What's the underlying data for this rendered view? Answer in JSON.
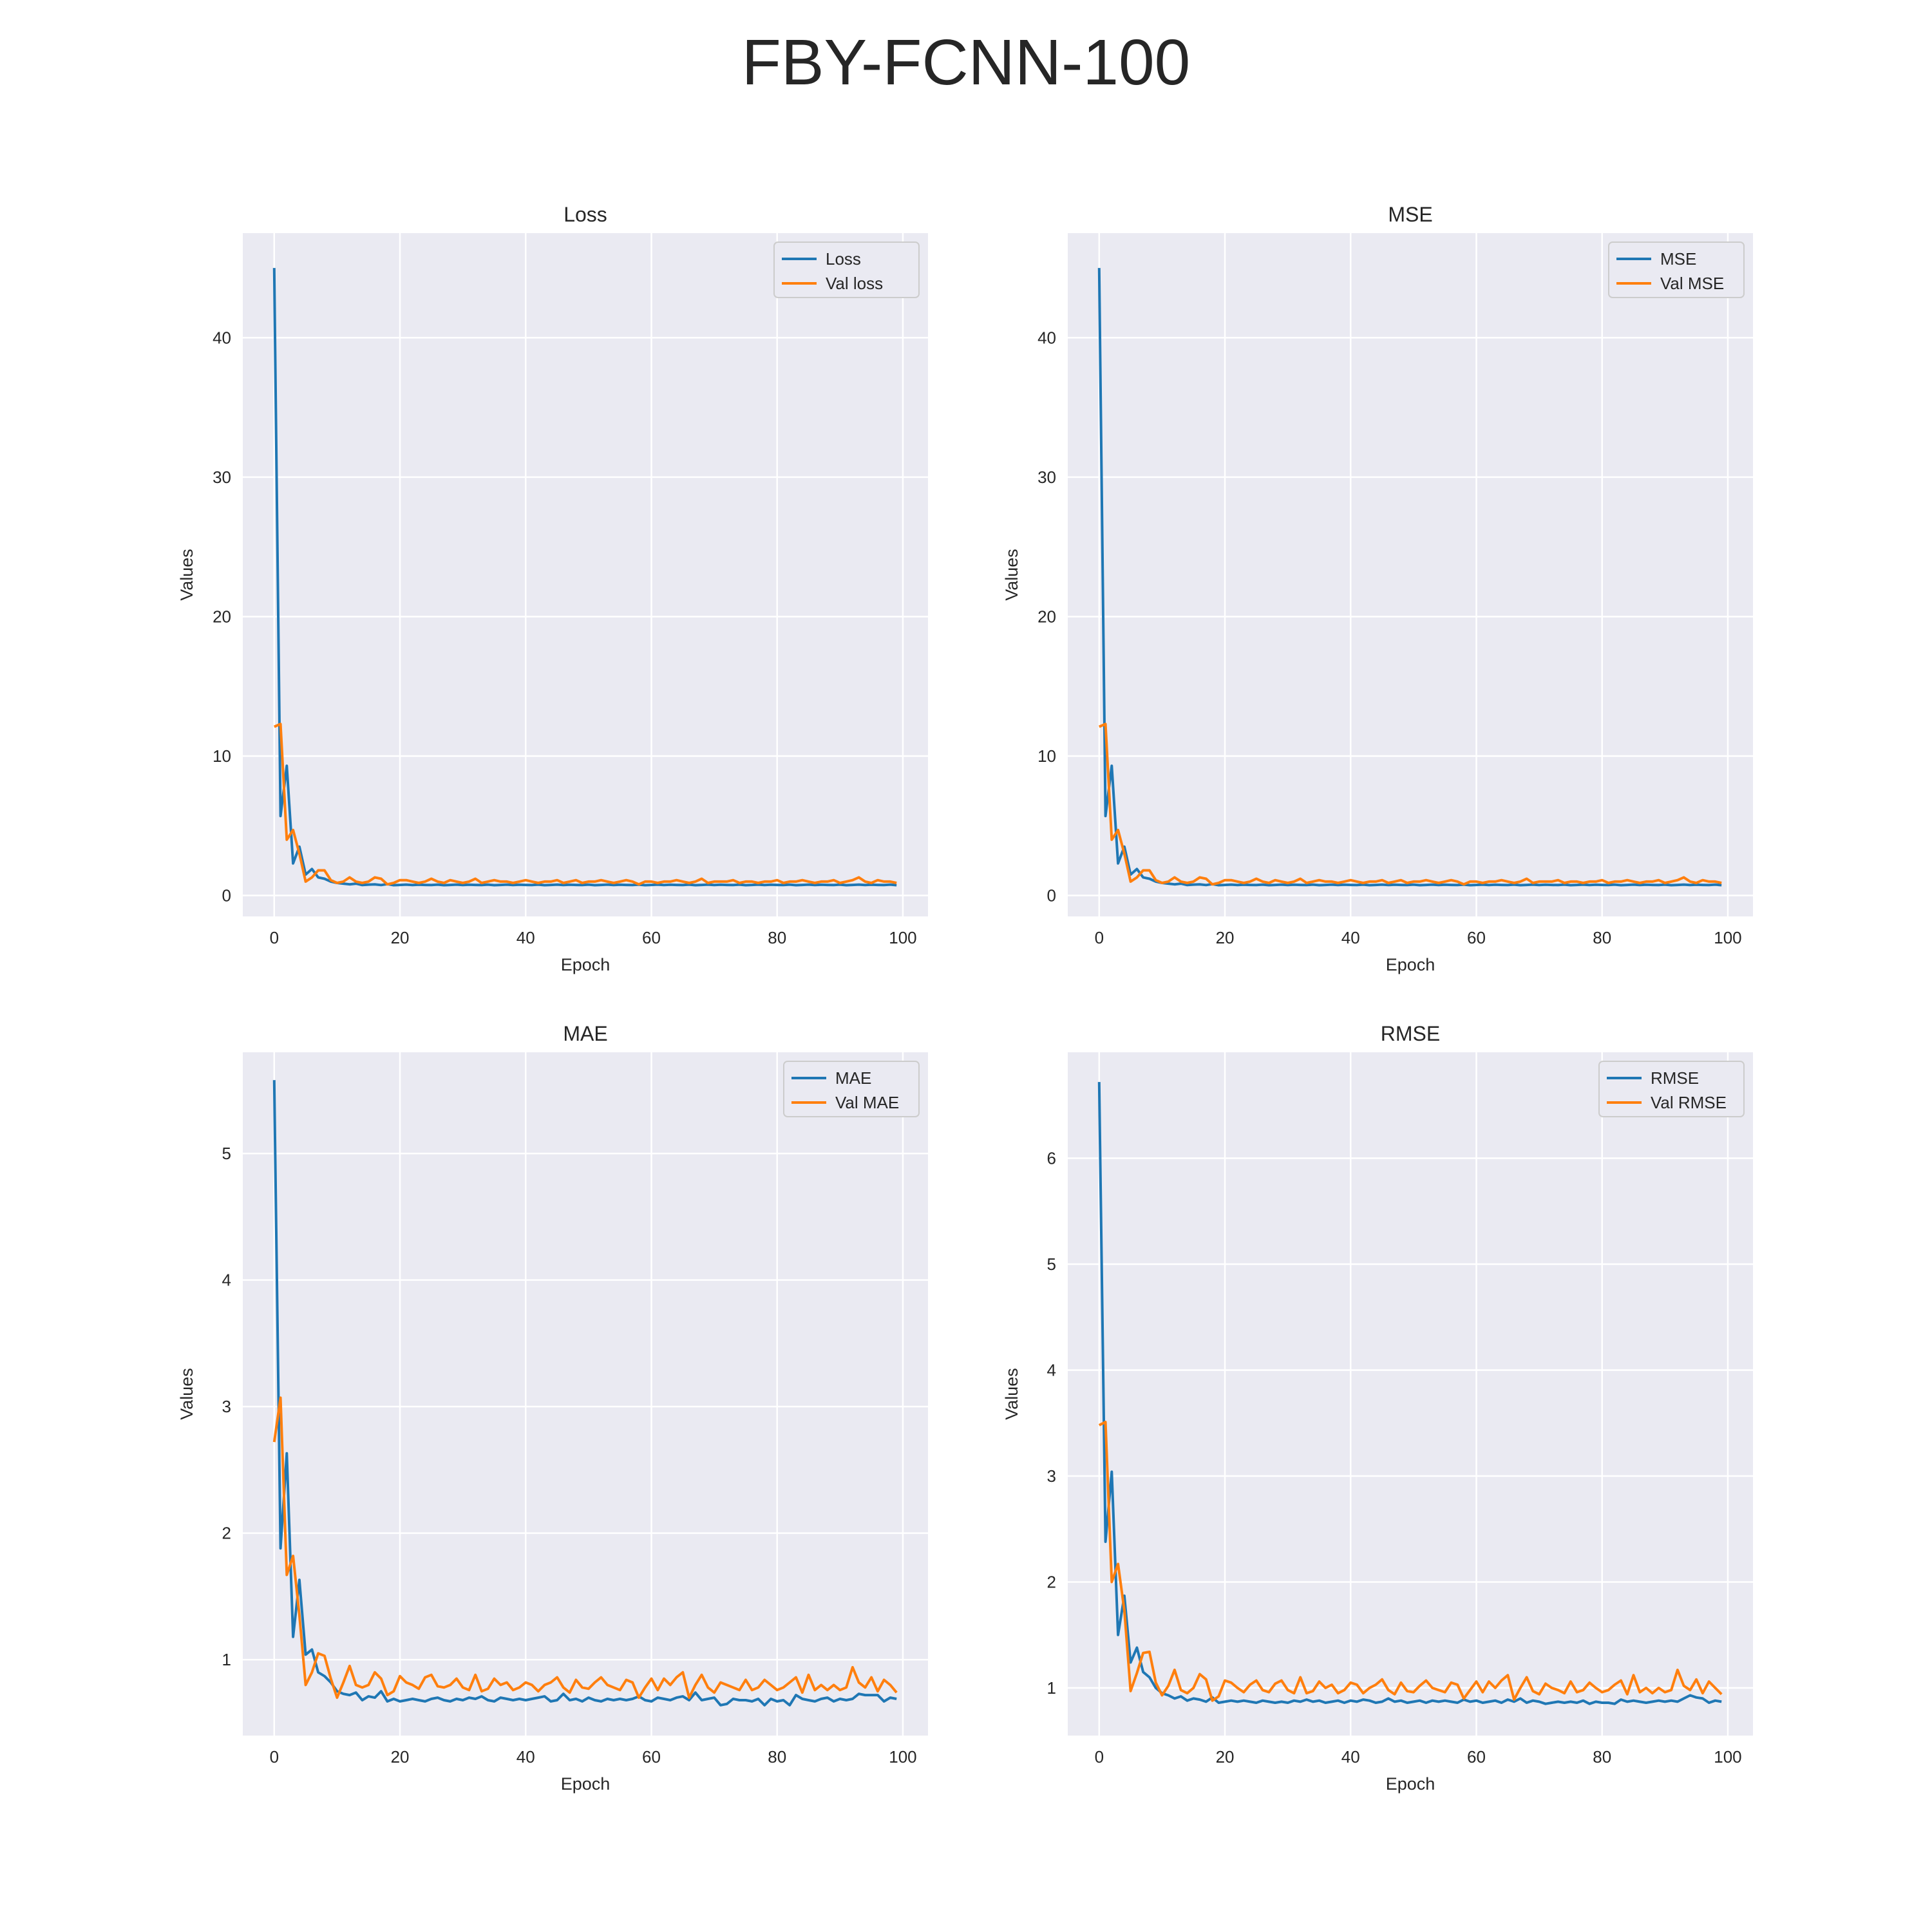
{
  "suptitle": "FBY-FCNN-100",
  "chart_data": [
    {
      "type": "line",
      "title": "Loss",
      "xlabel": "Epoch",
      "ylabel": "Values",
      "xlim": [
        -5,
        104
      ],
      "ylim": [
        -1.5,
        47.5
      ],
      "xticks": [
        0,
        20,
        40,
        60,
        80,
        100
      ],
      "yticks": [
        0,
        10,
        20,
        30,
        40
      ],
      "grid": true,
      "legend": "top-right",
      "series": [
        {
          "name": "Loss",
          "color": "#1f77b4",
          "values": [
            45.0,
            5.7,
            9.3,
            2.3,
            3.5,
            1.5,
            1.9,
            1.3,
            1.2,
            1.0,
            0.9,
            0.85,
            0.8,
            0.85,
            0.75,
            0.78,
            0.8,
            0.75,
            0.82,
            0.74,
            0.76,
            0.78,
            0.75,
            0.77,
            0.76,
            0.75,
            0.78,
            0.74,
            0.76,
            0.78,
            0.75,
            0.77,
            0.76,
            0.75,
            0.78,
            0.74,
            0.76,
            0.78,
            0.75,
            0.77,
            0.76,
            0.75,
            0.78,
            0.74,
            0.76,
            0.78,
            0.75,
            0.77,
            0.76,
            0.75,
            0.78,
            0.74,
            0.76,
            0.78,
            0.75,
            0.77,
            0.76,
            0.75,
            0.78,
            0.74,
            0.76,
            0.78,
            0.75,
            0.77,
            0.76,
            0.75,
            0.78,
            0.74,
            0.76,
            0.78,
            0.75,
            0.77,
            0.76,
            0.75,
            0.78,
            0.74,
            0.76,
            0.78,
            0.75,
            0.77,
            0.76,
            0.75,
            0.78,
            0.74,
            0.76,
            0.78,
            0.75,
            0.77,
            0.76,
            0.75,
            0.78,
            0.74,
            0.76,
            0.78,
            0.75,
            0.77,
            0.76,
            0.75,
            0.78,
            0.74
          ]
        },
        {
          "name": "Val loss",
          "color": "#ff7f0e",
          "values": [
            12.1,
            12.3,
            4.0,
            4.7,
            3.0,
            1.0,
            1.3,
            1.8,
            1.8,
            1.1,
            0.9,
            1.0,
            1.3,
            1.0,
            0.9,
            1.0,
            1.3,
            1.2,
            0.8,
            0.9,
            1.1,
            1.1,
            1.0,
            0.9,
            1.0,
            1.2,
            1.0,
            0.9,
            1.1,
            1.0,
            0.9,
            1.0,
            1.2,
            0.9,
            1.0,
            1.1,
            1.0,
            1.0,
            0.9,
            1.0,
            1.1,
            1.0,
            0.9,
            1.0,
            1.0,
            1.1,
            0.9,
            1.0,
            1.1,
            0.9,
            1.0,
            1.0,
            1.1,
            1.0,
            0.9,
            1.0,
            1.1,
            1.0,
            0.8,
            1.0,
            1.0,
            0.9,
            1.0,
            1.0,
            1.1,
            1.0,
            0.9,
            1.0,
            1.2,
            0.9,
            1.0,
            1.0,
            1.0,
            1.1,
            0.9,
            1.0,
            1.0,
            0.9,
            1.0,
            1.0,
            1.1,
            0.9,
            1.0,
            1.0,
            1.1,
            1.0,
            0.9,
            1.0,
            1.0,
            1.1,
            0.9,
            1.0,
            1.1,
            1.3,
            1.0,
            0.9,
            1.1,
            1.0,
            1.0,
            0.9
          ]
        }
      ]
    },
    {
      "type": "line",
      "title": "MSE",
      "xlabel": "Epoch",
      "ylabel": "Values",
      "xlim": [
        -5,
        104
      ],
      "ylim": [
        -1.5,
        47.5
      ],
      "xticks": [
        0,
        20,
        40,
        60,
        80,
        100
      ],
      "yticks": [
        0,
        10,
        20,
        30,
        40
      ],
      "grid": true,
      "legend": "top-right",
      "series": [
        {
          "name": "MSE",
          "color": "#1f77b4",
          "values": [
            45.0,
            5.7,
            9.3,
            2.3,
            3.5,
            1.5,
            1.9,
            1.3,
            1.2,
            1.0,
            0.9,
            0.85,
            0.8,
            0.85,
            0.75,
            0.78,
            0.8,
            0.75,
            0.82,
            0.74,
            0.76,
            0.78,
            0.75,
            0.77,
            0.76,
            0.75,
            0.78,
            0.74,
            0.76,
            0.78,
            0.75,
            0.77,
            0.76,
            0.75,
            0.78,
            0.74,
            0.76,
            0.78,
            0.75,
            0.77,
            0.76,
            0.75,
            0.78,
            0.74,
            0.76,
            0.78,
            0.75,
            0.77,
            0.76,
            0.75,
            0.78,
            0.74,
            0.76,
            0.78,
            0.75,
            0.77,
            0.76,
            0.75,
            0.78,
            0.74,
            0.76,
            0.78,
            0.75,
            0.77,
            0.76,
            0.75,
            0.78,
            0.74,
            0.76,
            0.78,
            0.75,
            0.77,
            0.76,
            0.75,
            0.78,
            0.74,
            0.76,
            0.78,
            0.75,
            0.77,
            0.76,
            0.75,
            0.78,
            0.74,
            0.76,
            0.78,
            0.75,
            0.77,
            0.76,
            0.75,
            0.78,
            0.74,
            0.76,
            0.78,
            0.75,
            0.77,
            0.76,
            0.75,
            0.78,
            0.74
          ]
        },
        {
          "name": "Val MSE",
          "color": "#ff7f0e",
          "values": [
            12.1,
            12.3,
            4.0,
            4.7,
            3.0,
            1.0,
            1.3,
            1.8,
            1.8,
            1.1,
            0.9,
            1.0,
            1.3,
            1.0,
            0.9,
            1.0,
            1.3,
            1.2,
            0.8,
            0.9,
            1.1,
            1.1,
            1.0,
            0.9,
            1.0,
            1.2,
            1.0,
            0.9,
            1.1,
            1.0,
            0.9,
            1.0,
            1.2,
            0.9,
            1.0,
            1.1,
            1.0,
            1.0,
            0.9,
            1.0,
            1.1,
            1.0,
            0.9,
            1.0,
            1.0,
            1.1,
            0.9,
            1.0,
            1.1,
            0.9,
            1.0,
            1.0,
            1.1,
            1.0,
            0.9,
            1.0,
            1.1,
            1.0,
            0.8,
            1.0,
            1.0,
            0.9,
            1.0,
            1.0,
            1.1,
            1.0,
            0.9,
            1.0,
            1.2,
            0.9,
            1.0,
            1.0,
            1.0,
            1.1,
            0.9,
            1.0,
            1.0,
            0.9,
            1.0,
            1.0,
            1.1,
            0.9,
            1.0,
            1.0,
            1.1,
            1.0,
            0.9,
            1.0,
            1.0,
            1.1,
            0.9,
            1.0,
            1.1,
            1.3,
            1.0,
            0.9,
            1.1,
            1.0,
            1.0,
            0.9
          ]
        }
      ]
    },
    {
      "type": "line",
      "title": "MAE",
      "xlabel": "Epoch",
      "ylabel": "Values",
      "xlim": [
        -5,
        104
      ],
      "ylim": [
        0.4,
        5.8
      ],
      "xticks": [
        0,
        20,
        40,
        60,
        80,
        100
      ],
      "yticks": [
        1,
        2,
        3,
        4,
        5
      ],
      "grid": true,
      "legend": "top-right",
      "series": [
        {
          "name": "MAE",
          "color": "#1f77b4",
          "values": [
            5.58,
            1.88,
            2.63,
            1.18,
            1.63,
            1.04,
            1.08,
            0.9,
            0.87,
            0.82,
            0.75,
            0.73,
            0.72,
            0.74,
            0.68,
            0.71,
            0.7,
            0.75,
            0.67,
            0.69,
            0.67,
            0.68,
            0.69,
            0.68,
            0.67,
            0.69,
            0.7,
            0.68,
            0.67,
            0.69,
            0.68,
            0.7,
            0.69,
            0.71,
            0.68,
            0.67,
            0.7,
            0.69,
            0.68,
            0.69,
            0.68,
            0.69,
            0.7,
            0.71,
            0.67,
            0.68,
            0.73,
            0.68,
            0.69,
            0.67,
            0.7,
            0.68,
            0.67,
            0.69,
            0.68,
            0.69,
            0.68,
            0.69,
            0.71,
            0.68,
            0.67,
            0.7,
            0.69,
            0.68,
            0.7,
            0.71,
            0.68,
            0.74,
            0.68,
            0.69,
            0.7,
            0.64,
            0.65,
            0.69,
            0.68,
            0.68,
            0.67,
            0.69,
            0.64,
            0.69,
            0.67,
            0.68,
            0.64,
            0.72,
            0.69,
            0.68,
            0.67,
            0.69,
            0.7,
            0.67,
            0.69,
            0.68,
            0.69,
            0.73,
            0.72,
            0.72,
            0.72,
            0.67,
            0.7,
            0.69
          ]
        },
        {
          "name": "Val MAE",
          "color": "#ff7f0e",
          "values": [
            2.72,
            3.07,
            1.67,
            1.82,
            1.35,
            0.8,
            0.9,
            1.05,
            1.03,
            0.85,
            0.7,
            0.82,
            0.95,
            0.8,
            0.78,
            0.8,
            0.9,
            0.85,
            0.72,
            0.75,
            0.87,
            0.82,
            0.8,
            0.77,
            0.86,
            0.88,
            0.79,
            0.78,
            0.8,
            0.85,
            0.78,
            0.76,
            0.88,
            0.75,
            0.77,
            0.85,
            0.8,
            0.82,
            0.76,
            0.78,
            0.82,
            0.8,
            0.75,
            0.8,
            0.82,
            0.86,
            0.78,
            0.74,
            0.84,
            0.78,
            0.77,
            0.82,
            0.86,
            0.8,
            0.78,
            0.76,
            0.84,
            0.82,
            0.7,
            0.78,
            0.85,
            0.76,
            0.85,
            0.8,
            0.86,
            0.9,
            0.7,
            0.8,
            0.88,
            0.78,
            0.74,
            0.82,
            0.8,
            0.78,
            0.76,
            0.84,
            0.76,
            0.78,
            0.84,
            0.8,
            0.76,
            0.78,
            0.82,
            0.86,
            0.74,
            0.88,
            0.76,
            0.8,
            0.76,
            0.8,
            0.76,
            0.78,
            0.94,
            0.82,
            0.78,
            0.86,
            0.75,
            0.84,
            0.8,
            0.74
          ]
        }
      ]
    },
    {
      "type": "line",
      "title": "RMSE",
      "xlabel": "Epoch",
      "ylabel": "Values",
      "xlim": [
        -5,
        104
      ],
      "ylim": [
        0.55,
        7.0
      ],
      "xticks": [
        0,
        20,
        40,
        60,
        80,
        100
      ],
      "yticks": [
        1,
        2,
        3,
        4,
        5,
        6
      ],
      "grid": true,
      "legend": "top-right",
      "series": [
        {
          "name": "RMSE",
          "color": "#1f77b4",
          "values": [
            6.72,
            2.38,
            3.04,
            1.5,
            1.87,
            1.24,
            1.38,
            1.15,
            1.1,
            1.0,
            0.95,
            0.93,
            0.9,
            0.92,
            0.88,
            0.9,
            0.89,
            0.87,
            0.91,
            0.86,
            0.87,
            0.88,
            0.87,
            0.88,
            0.87,
            0.86,
            0.88,
            0.87,
            0.86,
            0.87,
            0.86,
            0.88,
            0.87,
            0.89,
            0.87,
            0.88,
            0.86,
            0.87,
            0.88,
            0.86,
            0.88,
            0.87,
            0.89,
            0.88,
            0.86,
            0.87,
            0.9,
            0.87,
            0.88,
            0.86,
            0.87,
            0.88,
            0.86,
            0.88,
            0.87,
            0.88,
            0.87,
            0.86,
            0.89,
            0.87,
            0.88,
            0.86,
            0.87,
            0.88,
            0.86,
            0.89,
            0.87,
            0.9,
            0.86,
            0.88,
            0.87,
            0.85,
            0.86,
            0.87,
            0.86,
            0.87,
            0.86,
            0.88,
            0.85,
            0.87,
            0.86,
            0.86,
            0.85,
            0.89,
            0.87,
            0.88,
            0.87,
            0.86,
            0.87,
            0.88,
            0.87,
            0.88,
            0.87,
            0.9,
            0.93,
            0.91,
            0.9,
            0.86,
            0.88,
            0.87
          ]
        },
        {
          "name": "Val RMSE",
          "color": "#ff7f0e",
          "values": [
            3.48,
            3.51,
            2.0,
            2.17,
            1.73,
            0.97,
            1.14,
            1.33,
            1.34,
            1.05,
            0.93,
            1.02,
            1.17,
            0.98,
            0.95,
            1.0,
            1.13,
            1.08,
            0.88,
            0.92,
            1.07,
            1.05,
            1.0,
            0.96,
            1.03,
            1.07,
            0.98,
            0.96,
            1.04,
            1.07,
            0.98,
            0.95,
            1.1,
            0.95,
            0.97,
            1.06,
            1.0,
            1.03,
            0.95,
            0.98,
            1.05,
            1.03,
            0.95,
            1.0,
            1.03,
            1.08,
            0.98,
            0.94,
            1.05,
            0.97,
            0.96,
            1.02,
            1.07,
            1.0,
            0.98,
            0.96,
            1.05,
            1.03,
            0.9,
            0.98,
            1.06,
            0.96,
            1.06,
            1.0,
            1.07,
            1.12,
            0.89,
            1.0,
            1.1,
            0.97,
            0.94,
            1.04,
            1.0,
            0.98,
            0.95,
            1.06,
            0.96,
            0.98,
            1.05,
            1.0,
            0.96,
            0.98,
            1.03,
            1.07,
            0.94,
            1.12,
            0.96,
            1.0,
            0.95,
            1.0,
            0.96,
            0.98,
            1.17,
            1.02,
            0.98,
            1.08,
            0.95,
            1.06,
            1.0,
            0.94
          ]
        }
      ]
    }
  ]
}
